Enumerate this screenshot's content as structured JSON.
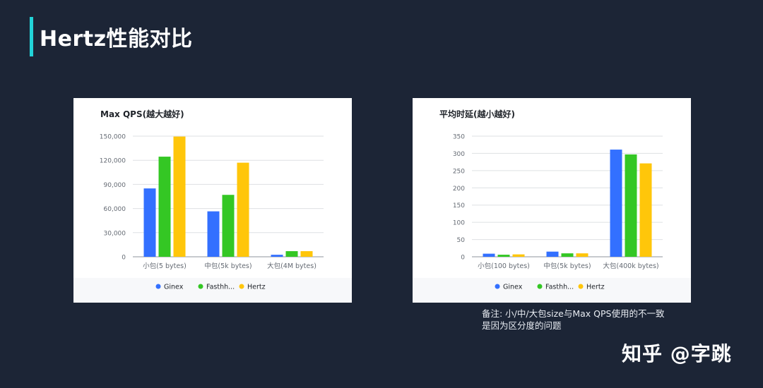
{
  "page": {
    "title": "Hertz性能对比",
    "note_lines": [
      "备注: 小/中/大包size与Max QPS使用的不一致",
      "是因为区分度的问题"
    ],
    "watermark": "知乎 @字跳"
  },
  "colors": {
    "background": "#1c2536",
    "accent": "#22d3d8",
    "ginex": "#3370ff",
    "fasthttp": "#34c724",
    "hertz": "#ffc60a"
  },
  "chart_data": [
    {
      "type": "bar",
      "title": "Max QPS(越大越好)",
      "categories": [
        "小包(5 bytes)",
        "中包(5k bytes)",
        "大包(4M bytes)"
      ],
      "series": [
        {
          "name": "Ginex",
          "values": [
            85000,
            56500,
            2500
          ]
        },
        {
          "name": "Fasthh...",
          "values": [
            124500,
            77000,
            7000
          ]
        },
        {
          "name": "Hertz",
          "values": [
            149500,
            117000,
            7000
          ]
        }
      ],
      "ylim": [
        0,
        150000
      ],
      "yticks": [
        "0",
        "30,000",
        "60,000",
        "90,000",
        "120,000",
        "150,000"
      ],
      "ytick_values": [
        0,
        30000,
        60000,
        90000,
        120000,
        150000
      ],
      "grid": true,
      "legend": "bottom"
    },
    {
      "type": "bar",
      "title": "平均时延(越小越好)",
      "categories": [
        "小包(100 bytes)",
        "中包(5k bytes)",
        "大包(400k bytes)"
      ],
      "series": [
        {
          "name": "Ginex",
          "values": [
            9,
            15,
            311
          ]
        },
        {
          "name": "Fasthh...",
          "values": [
            6,
            10,
            297
          ]
        },
        {
          "name": "Hertz",
          "values": [
            7,
            10,
            271
          ]
        }
      ],
      "ylim": [
        0,
        350
      ],
      "yticks": [
        "0",
        "50",
        "100",
        "150",
        "200",
        "250",
        "300",
        "350"
      ],
      "ytick_values": [
        0,
        50,
        100,
        150,
        200,
        250,
        300,
        350
      ],
      "grid": true,
      "legend": "bottom"
    }
  ]
}
